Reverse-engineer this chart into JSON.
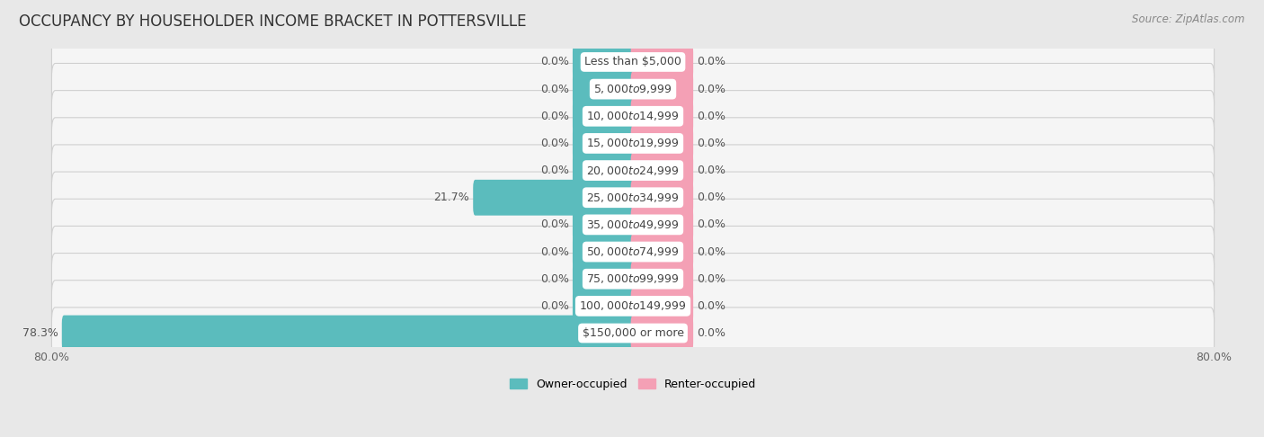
{
  "title": "OCCUPANCY BY HOUSEHOLDER INCOME BRACKET IN POTTERSVILLE",
  "source": "Source: ZipAtlas.com",
  "categories": [
    "Less than $5,000",
    "$5,000 to $9,999",
    "$10,000 to $14,999",
    "$15,000 to $19,999",
    "$20,000 to $24,999",
    "$25,000 to $34,999",
    "$35,000 to $49,999",
    "$50,000 to $74,999",
    "$75,000 to $99,999",
    "$100,000 to $149,999",
    "$150,000 or more"
  ],
  "owner_values": [
    0.0,
    0.0,
    0.0,
    0.0,
    0.0,
    21.7,
    0.0,
    0.0,
    0.0,
    0.0,
    78.3
  ],
  "renter_values": [
    0.0,
    0.0,
    0.0,
    0.0,
    0.0,
    0.0,
    0.0,
    0.0,
    0.0,
    0.0,
    0.0
  ],
  "owner_color": "#5bbcbd",
  "renter_color": "#f4a0b5",
  "owner_label": "Owner-occupied",
  "renter_label": "Renter-occupied",
  "xlim_left": -80.0,
  "xlim_right": 80.0,
  "background_color": "#e8e8e8",
  "row_bg_color": "#f5f5f5",
  "row_border_color": "#d0d0d0",
  "stub_size": 8.0,
  "bar_height": 0.72,
  "title_fontsize": 12,
  "label_fontsize": 9,
  "category_fontsize": 9,
  "value_fontsize": 9,
  "source_fontsize": 8.5
}
